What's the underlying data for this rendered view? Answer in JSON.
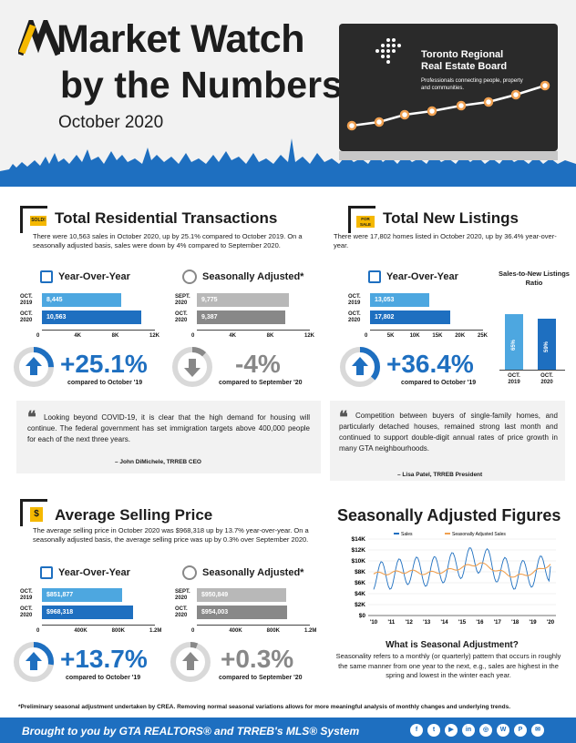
{
  "header": {
    "title_line1": "Market Watch",
    "title_line2": "by the Numbers",
    "subtitle": "October 2020",
    "board_name_line1": "Toronto Regional",
    "board_name_line2": "Real Estate Board",
    "board_tagline": "Professionals connecting people, property and communities."
  },
  "transactions": {
    "title": "Total Residential Transactions",
    "sign_text": "SOLD!",
    "description": "There were 10,563 sales in October 2020, up by 25.1% compared to October 2019. On a seasonally adjusted basis, sales were down by 4% compared to September 2020.",
    "yoy_title": "Year-Over-Year",
    "sa_title": "Seasonally Adjusted*",
    "yoy_rows": [
      {
        "label1": "OCT.",
        "label2": "2019",
        "value": 8445,
        "text": "8,445"
      },
      {
        "label1": "OCT.",
        "label2": "2020",
        "value": 10563,
        "text": "10,563"
      }
    ],
    "yoy_ticks": [
      "0",
      "4K",
      "8K",
      "12K"
    ],
    "yoy_max": 12000,
    "sa_rows": [
      {
        "label1": "SEPT.",
        "label2": "2020",
        "value": 9775,
        "text": "9,775"
      },
      {
        "label1": "OCT.",
        "label2": "2020",
        "value": 9387,
        "text": "9,387"
      }
    ],
    "sa_ticks": [
      "0",
      "4K",
      "8K",
      "12K"
    ],
    "sa_max": 12000,
    "yoy_pct": "+25.1%",
    "yoy_pct_value": 25.1,
    "yoy_cap": "compared to October '19",
    "sa_pct": "-4%",
    "sa_pct_value": 4,
    "sa_cap": "compared to September '20",
    "quote": "Looking beyond COVID-19, it is clear that the high demand for housing will continue. The federal government has set immigration targets above 400,000 people for each of the next three years.",
    "quote_attr": "– John DiMichele, TRREB CEO"
  },
  "listings": {
    "title": "Total New Listings",
    "sign_text": "FOR SALE",
    "description": "There were 17,802 homes listed in October 2020, up by 36.4% year-over-year.",
    "yoy_title": "Year-Over-Year",
    "yoy_rows": [
      {
        "label1": "OCT.",
        "label2": "2019",
        "value": 13053,
        "text": "13,053"
      },
      {
        "label1": "OCT.",
        "label2": "2020",
        "value": 17802,
        "text": "17,802"
      }
    ],
    "yoy_ticks": [
      "0",
      "5K",
      "10K",
      "15K",
      "20K",
      "25K"
    ],
    "yoy_max": 25000,
    "yoy_pct": "+36.4%",
    "yoy_pct_value": 36.4,
    "yoy_cap": "compared to October '19",
    "ratio_title": "Sales-to-New Listings Ratio",
    "ratio_bars": [
      {
        "label1": "OCT.",
        "label2": "2019",
        "value": 65,
        "text": "65%"
      },
      {
        "label1": "OCT.",
        "label2": "2020",
        "value": 59,
        "text": "59%"
      }
    ],
    "quote": "Competition between buyers of single-family homes, and particularly detached houses, remained strong last month and continued to support double-digit annual rates of price growth in many GTA neighbourhoods.",
    "quote_attr": "– Lisa Patel, TRREB President"
  },
  "price": {
    "title": "Average Selling Price",
    "description": "The average selling price in October 2020 was $968,318 up by 13.7% year-over-year. On a seasonally adjusted basis, the average selling price was up by 0.3% over September 2020.",
    "yoy_title": "Year-Over-Year",
    "sa_title": "Seasonally Adjusted*",
    "yoy_rows": [
      {
        "label1": "OCT.",
        "label2": "2019",
        "value": 851877,
        "text": "$851,877"
      },
      {
        "label1": "OCT.",
        "label2": "2020",
        "value": 968318,
        "text": "$968,318"
      }
    ],
    "yoy_ticks": [
      "0",
      "400K",
      "800K",
      "1.2M"
    ],
    "yoy_max": 1200000,
    "sa_rows": [
      {
        "label1": "SEPT.",
        "label2": "2020",
        "value": 950849,
        "text": "$950,849"
      },
      {
        "label1": "OCT.",
        "label2": "2020",
        "value": 954003,
        "text": "$954,003"
      }
    ],
    "sa_ticks": [
      "0",
      "400K",
      "800K",
      "1.2M"
    ],
    "sa_max": 1200000,
    "yoy_pct": "+13.7%",
    "yoy_pct_value": 13.7,
    "yoy_cap": "compared to October '19",
    "sa_pct": "+0.3%",
    "sa_pct_value": 0.3,
    "sa_cap": "compared to September '20"
  },
  "seasonal": {
    "title": "Seasonally Adjusted Figures",
    "legend_sales": "Sales",
    "legend_sa": "Seasonally Adjusted Sales",
    "y_ticks": [
      "$14K",
      "$12K",
      "$10K",
      "$8K",
      "$6K",
      "$4K",
      "$2K",
      "$0"
    ],
    "x_ticks": [
      "'10",
      "'11",
      "'12",
      "'13",
      "'14",
      "'15",
      "'16",
      "'17",
      "'18",
      "'19",
      "'20"
    ],
    "question": "What is Seasonal Adjustment?",
    "answer": "Seasonality refers to a monthly (or quarterly) pattern that occurs in roughly the same manner from one year to the next, e.g., sales are highest in the spring and lowest in the winter each year."
  },
  "chart_data": {
    "type": "line",
    "x": [
      "'10",
      "'11",
      "'12",
      "'13",
      "'14",
      "'15",
      "'16",
      "'17",
      "'18",
      "'19",
      "'20"
    ],
    "ylim": [
      0,
      14000
    ],
    "series": [
      {
        "name": "Sales",
        "values": [
          7200,
          7400,
          8300,
          7900,
          8600,
          9400,
          10400,
          8600,
          7300,
          7800,
          9000
        ]
      },
      {
        "name": "Seasonally Adjusted Sales",
        "values": [
          7600,
          7800,
          8100,
          7700,
          8100,
          8800,
          9600,
          8200,
          7100,
          7800,
          9400
        ]
      }
    ],
    "colors": {
      "Sales": "#1e6fc0",
      "Seasonally Adjusted Sales": "#f0a050"
    }
  },
  "footnote": "*Preliminary seasonal adjustment undertaken by CREA. Removing normal seasonal variations allows for more meaningful analysis of monthly changes and underlying trends.",
  "footer": {
    "text": "Brought to you by GTA REALTORS® and TRREB's MLS® System",
    "social": [
      {
        "icon": "facebook-icon",
        "glyph": "f"
      },
      {
        "icon": "twitter-icon",
        "glyph": "t"
      },
      {
        "icon": "youtube-icon",
        "glyph": "▶"
      },
      {
        "icon": "linkedin-icon",
        "glyph": "in"
      },
      {
        "icon": "instagram-icon",
        "glyph": "◎"
      },
      {
        "icon": "wordpress-icon",
        "glyph": "W"
      },
      {
        "icon": "pinterest-icon",
        "glyph": "P"
      },
      {
        "icon": "email-icon",
        "glyph": "✉"
      }
    ]
  },
  "colors": {
    "accent": "#1e6fc0",
    "accent_light": "#4da7e0",
    "gray": "#888888",
    "orange": "#f0a050",
    "yellow": "#f5b800"
  }
}
